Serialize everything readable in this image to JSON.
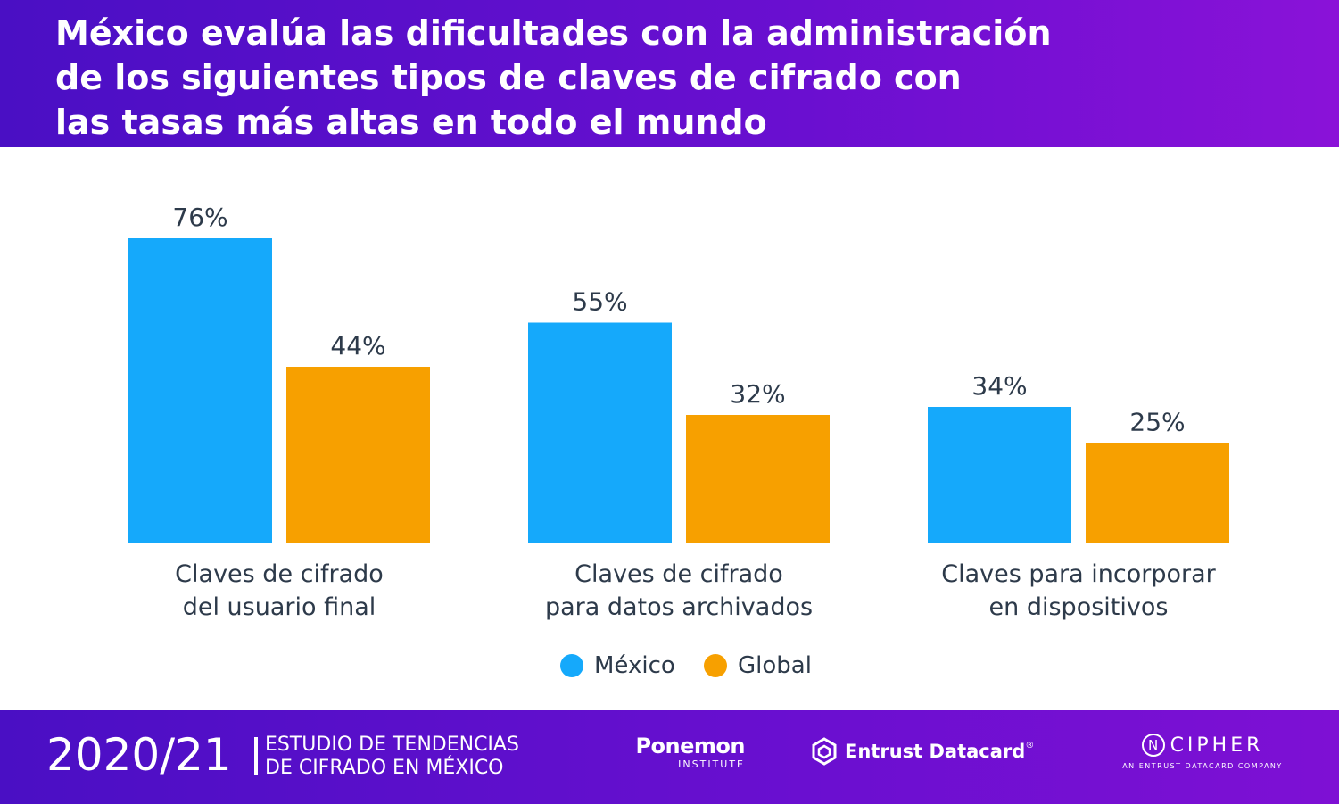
{
  "header": {
    "title_lines": [
      "México evalúa las dificultades con la administración",
      "de los siguientes tipos de claves de cifrado con",
      "las tasas más altas en todo el mundo"
    ]
  },
  "chart_data": {
    "type": "bar",
    "title": "México evalúa las dificultades con la administración de los siguientes tipos de claves de cifrado con las tasas más altas en todo el mundo",
    "categories": [
      [
        "Claves de cifrado",
        "del usuario final"
      ],
      [
        "Claves de cifrado",
        "para datos archivados"
      ],
      [
        "Claves para incorporar",
        "en dispositivos"
      ]
    ],
    "series": [
      {
        "name": "México",
        "values": [
          76,
          55,
          34
        ],
        "color": "#15a9fb"
      },
      {
        "name": "Global",
        "values": [
          44,
          32,
          25
        ],
        "color": "#f7a000"
      }
    ],
    "value_suffix": "%",
    "ylim": [
      0,
      100
    ],
    "grid": false,
    "legend_position": "bottom-center"
  },
  "legend": {
    "items": [
      {
        "label": "México",
        "color": "#15a9fb"
      },
      {
        "label": "Global",
        "color": "#f7a000"
      }
    ]
  },
  "footer": {
    "year": "2020/21",
    "study_lines": [
      "ESTUDIO DE TENDENCIAS",
      "DE CIFRADO EN MÉXICO"
    ],
    "ponemon": {
      "name": "Ponemon",
      "sub": "INSTITUTE"
    },
    "entrust": {
      "name": "Entrust Datacard",
      "mark": "®"
    },
    "ncipher": {
      "letter": "N",
      "name": "CIPHER",
      "sub": "AN ENTRUST DATACARD COMPANY"
    }
  },
  "colors": {
    "header_start": "#4a0fc4",
    "header_end": "#8a12d8",
    "mexico": "#15a9fb",
    "global": "#f7a000",
    "text": "#2d3a4a"
  }
}
